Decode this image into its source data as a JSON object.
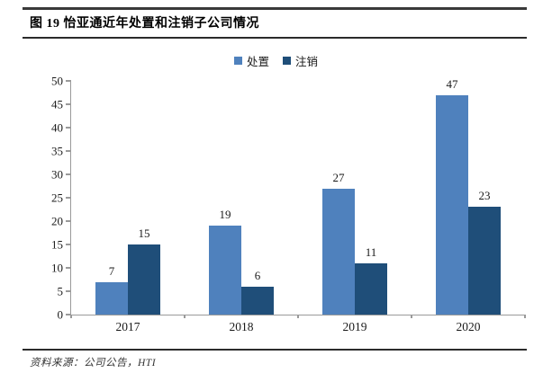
{
  "header": {
    "title": "图 19 怡亚通近年处置和注销子公司情况"
  },
  "footer": {
    "source": "资料来源：公司公告，HTI"
  },
  "chart_data": {
    "type": "bar",
    "title": "图 19 怡亚通近年处置和注销子公司情况",
    "categories": [
      "2017",
      "2018",
      "2019",
      "2020"
    ],
    "series": [
      {
        "name": "处置",
        "color": "#4F81BD",
        "values": [
          7,
          19,
          27,
          47
        ]
      },
      {
        "name": "注销",
        "color": "#1F4E79",
        "values": [
          15,
          6,
          11,
          23
        ]
      }
    ],
    "xlabel": "",
    "ylabel": "",
    "ylim": [
      0,
      50
    ],
    "ytick_step": 5,
    "grid": false,
    "legend_position": "top-center",
    "source": "资料来源：公司公告，HTI"
  }
}
